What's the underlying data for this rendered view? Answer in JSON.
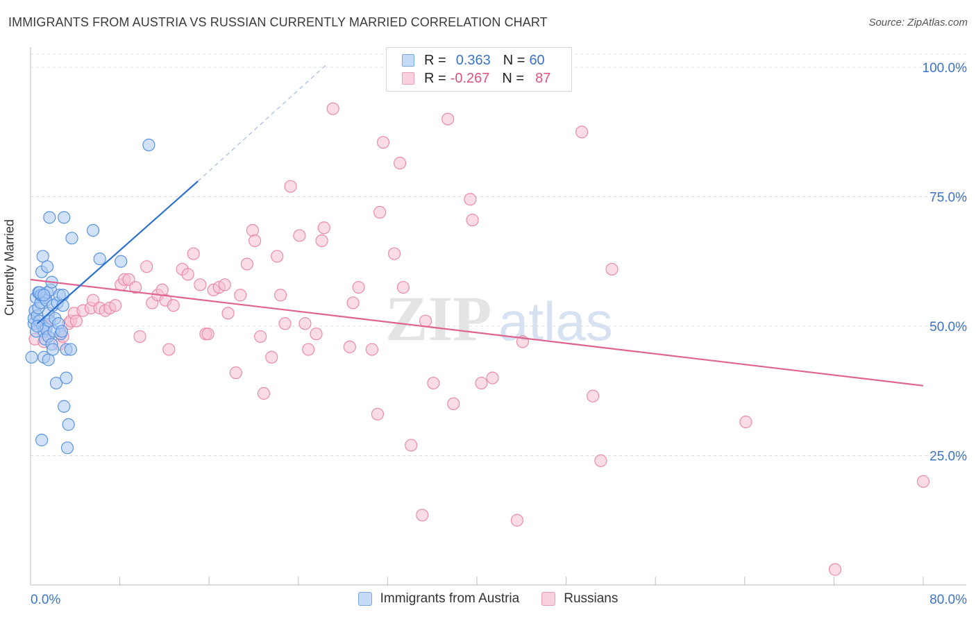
{
  "title": "IMMIGRANTS FROM AUSTRIA VS RUSSIAN CURRENTLY MARRIED CORRELATION CHART",
  "source": "Source: ZipAtlas.com",
  "watermark": {
    "zip": "ZIP",
    "atlas": "atlas"
  },
  "legend": {
    "r_label": "R =",
    "n_label": "N =",
    "series1": {
      "r": "0.363",
      "n": "60"
    },
    "series2": {
      "r": "-0.267",
      "n": "87"
    }
  },
  "colors": {
    "blue_fill": "#a9c8f3",
    "blue_stroke": "#5b93e0",
    "blue_line": "#2a6fd1",
    "pink_fill": "#f6bfd0",
    "pink_stroke": "#ea8aa9",
    "pink_line": "#e0648f",
    "axis_text": "#3b73c9",
    "grid": "#dcdcdc"
  },
  "chart_data": {
    "type": "scatter",
    "xlabel": "",
    "ylabel": "Currently Married",
    "xlim": [
      0,
      80
    ],
    "ylim": [
      0,
      105
    ],
    "x_tick_labels": [
      "0.0%",
      "80.0%"
    ],
    "y_ticks": [
      25,
      50,
      75,
      100
    ],
    "y_tick_labels": [
      "25.0%",
      "50.0%",
      "75.0%",
      "100.0%"
    ],
    "grid": true,
    "legend_position": "top-center",
    "series": [
      {
        "name": "Immigrants from Austria",
        "points": [
          [
            0.1,
            44.0
          ],
          [
            0.3,
            50.5
          ],
          [
            0.3,
            51.5
          ],
          [
            0.4,
            53.0
          ],
          [
            0.5,
            55.5
          ],
          [
            0.5,
            49.0
          ],
          [
            0.6,
            52.0
          ],
          [
            0.7,
            56.5
          ],
          [
            0.7,
            53.5
          ],
          [
            0.8,
            51.0
          ],
          [
            0.9,
            54.5
          ],
          [
            0.9,
            56.0
          ],
          [
            1.0,
            60.5
          ],
          [
            1.0,
            56.0
          ],
          [
            1.1,
            63.5
          ],
          [
            1.1,
            50.0
          ],
          [
            1.2,
            49.0
          ],
          [
            1.2,
            44.0
          ],
          [
            1.3,
            55.5
          ],
          [
            1.3,
            47.5
          ],
          [
            1.4,
            55.0
          ],
          [
            1.4,
            49.5
          ],
          [
            1.5,
            61.5
          ],
          [
            1.5,
            56.5
          ],
          [
            1.6,
            52.5
          ],
          [
            1.6,
            48.0
          ],
          [
            1.6,
            43.5
          ],
          [
            1.7,
            71.0
          ],
          [
            1.7,
            51.0
          ],
          [
            1.8,
            57.0
          ],
          [
            1.9,
            46.5
          ],
          [
            1.9,
            58.5
          ],
          [
            2.0,
            54.0
          ],
          [
            2.0,
            45.5
          ],
          [
            2.1,
            49.0
          ],
          [
            2.2,
            51.5
          ],
          [
            2.3,
            39.0
          ],
          [
            2.4,
            54.5
          ],
          [
            2.5,
            50.5
          ],
          [
            2.6,
            56.0
          ],
          [
            2.7,
            48.5
          ],
          [
            2.9,
            56.0
          ],
          [
            2.9,
            54.0
          ],
          [
            3.0,
            71.0
          ],
          [
            3.0,
            34.5
          ],
          [
            3.2,
            45.5
          ],
          [
            3.2,
            40.0
          ],
          [
            3.3,
            26.5
          ],
          [
            3.4,
            31.0
          ],
          [
            3.6,
            45.5
          ],
          [
            3.7,
            67.0
          ],
          [
            5.6,
            68.5
          ],
          [
            6.2,
            63.0
          ],
          [
            8.1,
            62.5
          ],
          [
            10.6,
            85.0
          ],
          [
            1.0,
            28.0
          ],
          [
            0.8,
            56.5
          ],
          [
            1.2,
            56.0
          ],
          [
            0.6,
            50.0
          ],
          [
            2.8,
            49.0
          ]
        ],
        "trendline": {
          "x0": 0.6,
          "y0": 50.5,
          "x1": 15.0,
          "y1": 78.0,
          "dashed_to_x": 26.5,
          "dashed_to_y": 100.5
        }
      },
      {
        "name": "Russians",
        "points": [
          [
            0.4,
            47.5
          ],
          [
            1.2,
            47.0
          ],
          [
            1.4,
            50.0
          ],
          [
            2.6,
            46.5
          ],
          [
            2.9,
            48.0
          ],
          [
            3.4,
            50.5
          ],
          [
            3.6,
            51.0
          ],
          [
            3.9,
            52.5
          ],
          [
            4.1,
            51.0
          ],
          [
            4.7,
            53.0
          ],
          [
            5.4,
            53.5
          ],
          [
            5.6,
            55.0
          ],
          [
            6.2,
            53.5
          ],
          [
            6.7,
            53.0
          ],
          [
            7.1,
            53.5
          ],
          [
            7.6,
            54.0
          ],
          [
            8.1,
            58.0
          ],
          [
            8.4,
            59.0
          ],
          [
            8.8,
            59.0
          ],
          [
            9.4,
            57.5
          ],
          [
            9.8,
            48.0
          ],
          [
            10.4,
            61.5
          ],
          [
            10.9,
            54.5
          ],
          [
            11.4,
            56.0
          ],
          [
            11.8,
            57.0
          ],
          [
            12.1,
            55.0
          ],
          [
            12.4,
            45.5
          ],
          [
            12.8,
            54.0
          ],
          [
            13.6,
            61.0
          ],
          [
            14.1,
            60.0
          ],
          [
            14.6,
            64.0
          ],
          [
            15.2,
            58.0
          ],
          [
            15.7,
            48.5
          ],
          [
            15.9,
            48.5
          ],
          [
            16.4,
            57.0
          ],
          [
            16.9,
            57.5
          ],
          [
            17.4,
            58.0
          ],
          [
            17.7,
            52.5
          ],
          [
            18.4,
            41.0
          ],
          [
            18.8,
            56.0
          ],
          [
            19.4,
            62.0
          ],
          [
            19.9,
            68.5
          ],
          [
            20.1,
            66.5
          ],
          [
            20.6,
            48.0
          ],
          [
            20.9,
            37.0
          ],
          [
            21.6,
            44.0
          ],
          [
            22.1,
            63.5
          ],
          [
            22.4,
            56.0
          ],
          [
            22.8,
            50.5
          ],
          [
            23.3,
            77.0
          ],
          [
            24.1,
            67.5
          ],
          [
            24.6,
            50.5
          ],
          [
            24.9,
            45.5
          ],
          [
            25.6,
            48.5
          ],
          [
            26.1,
            66.5
          ],
          [
            26.3,
            69.0
          ],
          [
            27.1,
            92.0
          ],
          [
            28.6,
            46.0
          ],
          [
            28.9,
            54.5
          ],
          [
            29.4,
            57.5
          ],
          [
            30.6,
            45.5
          ],
          [
            31.1,
            33.0
          ],
          [
            31.3,
            72.0
          ],
          [
            31.6,
            85.5
          ],
          [
            32.6,
            64.0
          ],
          [
            33.1,
            81.5
          ],
          [
            33.4,
            57.5
          ],
          [
            34.1,
            27.0
          ],
          [
            35.1,
            13.5
          ],
          [
            35.4,
            51.0
          ],
          [
            36.1,
            39.0
          ],
          [
            37.4,
            90.0
          ],
          [
            37.9,
            35.0
          ],
          [
            39.4,
            74.5
          ],
          [
            39.6,
            70.5
          ],
          [
            40.4,
            39.0
          ],
          [
            41.4,
            40.0
          ],
          [
            43.6,
            12.5
          ],
          [
            44.1,
            47.0
          ],
          [
            49.4,
            87.5
          ],
          [
            50.4,
            36.5
          ],
          [
            51.1,
            24.0
          ],
          [
            52.1,
            61.0
          ],
          [
            64.1,
            31.5
          ],
          [
            72.1,
            3.0
          ],
          [
            80.0,
            20.0
          ],
          [
            1.6,
            48.0
          ]
        ],
        "trendline": {
          "x0": 0.0,
          "y0": 59.0,
          "x1": 80.0,
          "y1": 38.5
        }
      }
    ]
  },
  "bottom_legend": {
    "series1": "Immigrants from Austria",
    "series2": "Russians"
  }
}
